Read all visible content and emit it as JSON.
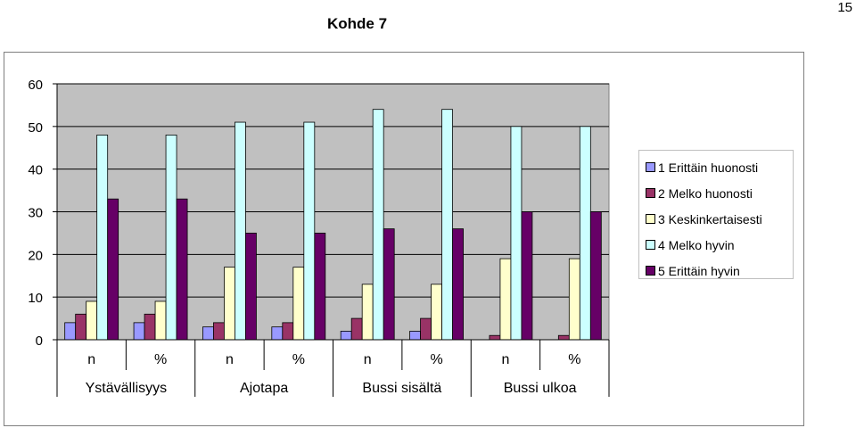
{
  "page_number": "15",
  "chart_data": {
    "type": "bar",
    "title": "Kohde 7",
    "xlabel": "",
    "ylabel": "",
    "ylim": [
      0,
      60
    ],
    "yticks": [
      "0",
      "10",
      "20",
      "30",
      "40",
      "50",
      "60"
    ],
    "grid": true,
    "legend_position": "right",
    "categories": [
      "n",
      "%",
      "n",
      "%",
      "n",
      "%",
      "n",
      "%"
    ],
    "groups": [
      "Ystävällisyys",
      "Ajotapa",
      "Bussi sisältä",
      "Bussi ulkoa"
    ],
    "series": [
      {
        "name": "1 Erittäin huonosti",
        "color": "#9999ff",
        "values": [
          4,
          4,
          3,
          3,
          2,
          2,
          0,
          0
        ]
      },
      {
        "name": "2 Melko huonosti",
        "color": "#993366",
        "values": [
          6,
          6,
          4,
          4,
          5,
          5,
          1,
          1
        ]
      },
      {
        "name": "3 Keskinkertaisesti",
        "color": "#ffffcc",
        "values": [
          9,
          9,
          17,
          17,
          13,
          13,
          19,
          19
        ]
      },
      {
        "name": "4 Melko hyvin",
        "color": "#ccffff",
        "values": [
          48,
          48,
          51,
          51,
          54,
          54,
          50,
          50
        ]
      },
      {
        "name": "5 Erittäin hyvin",
        "color": "#660066",
        "values": [
          33,
          33,
          25,
          25,
          26,
          26,
          30,
          30
        ]
      }
    ],
    "plot_background": "#c0c0c0"
  }
}
